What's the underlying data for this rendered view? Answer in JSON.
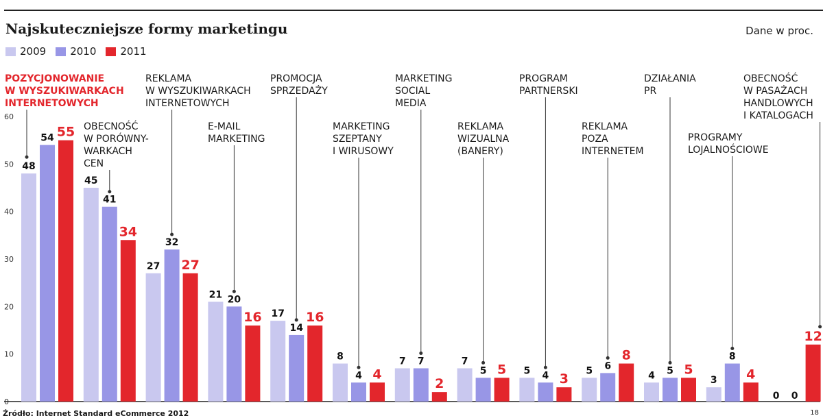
{
  "header": {
    "title": "Najskuteczniejsze formy marketingu",
    "unit": "Dane w proc."
  },
  "legend": [
    {
      "label": "2009",
      "color": "#c9c8ef"
    },
    {
      "label": "2010",
      "color": "#9896e6"
    },
    {
      "label": "2011",
      "color": "#e3262c"
    }
  ],
  "footer": {
    "source": "Źródło: Internet Standard eCommerce 2012",
    "page_number": "18"
  },
  "chart_data": {
    "type": "bar",
    "title": "Najskuteczniejsze formy marketingu",
    "ylabel": "",
    "ylim": [
      0,
      60
    ],
    "yticks": [
      0,
      10,
      20,
      30,
      40,
      50,
      60
    ],
    "grid": false,
    "legend_position": "top-left",
    "categories": [
      {
        "lines": [
          "POZYCJONOWANIE",
          "W WYSZUKIWARKACH",
          "INTERNETOWYCH"
        ],
        "highlight": true
      },
      {
        "lines": [
          "OBECNOŚĆ",
          "W PORÓWNY-",
          "WARKACH",
          "CEN"
        ],
        "highlight": false
      },
      {
        "lines": [
          "REKLAMA",
          "W WYSZUKIWARKACH",
          "INTERNETOWYCH"
        ],
        "highlight": false
      },
      {
        "lines": [
          "E-MAIL",
          "MARKETING"
        ],
        "highlight": false
      },
      {
        "lines": [
          "PROMOCJA",
          "SPRZEDAŻY"
        ],
        "highlight": false
      },
      {
        "lines": [
          "MARKETING",
          "SZEPTANY",
          "I WIRUSOWY"
        ],
        "highlight": false
      },
      {
        "lines": [
          "MARKETING",
          "SOCIAL",
          "MEDIA"
        ],
        "highlight": false
      },
      {
        "lines": [
          "REKLAMA",
          "WIZUALNA",
          "(BANERY)"
        ],
        "highlight": false
      },
      {
        "lines": [
          "PROGRAM",
          "PARTNERSKI"
        ],
        "highlight": false
      },
      {
        "lines": [
          "REKLAMA",
          "POZA",
          "INTERNETEM"
        ],
        "highlight": false
      },
      {
        "lines": [
          "DZIAŁANIA",
          "PR"
        ],
        "highlight": false
      },
      {
        "lines": [
          "PROGRAMY",
          "LOJALNOŚCIOWE"
        ],
        "highlight": false
      },
      {
        "lines": [
          "OBECNOŚĆ",
          "W PASAŻACH",
          "HANDLOWYCH",
          "I KATALOGACH"
        ],
        "highlight": false
      }
    ],
    "series": [
      {
        "name": "2009",
        "color": "#c9c8ef",
        "values": [
          48,
          45,
          27,
          21,
          17,
          8,
          7,
          7,
          5,
          5,
          4,
          3,
          0
        ]
      },
      {
        "name": "2010",
        "color": "#9896e6",
        "values": [
          54,
          41,
          32,
          20,
          14,
          4,
          7,
          5,
          4,
          6,
          5,
          8,
          0
        ]
      },
      {
        "name": "2011",
        "color": "#e3262c",
        "values": [
          55,
          34,
          27,
          16,
          16,
          4,
          2,
          5,
          3,
          8,
          5,
          4,
          12
        ]
      }
    ]
  }
}
